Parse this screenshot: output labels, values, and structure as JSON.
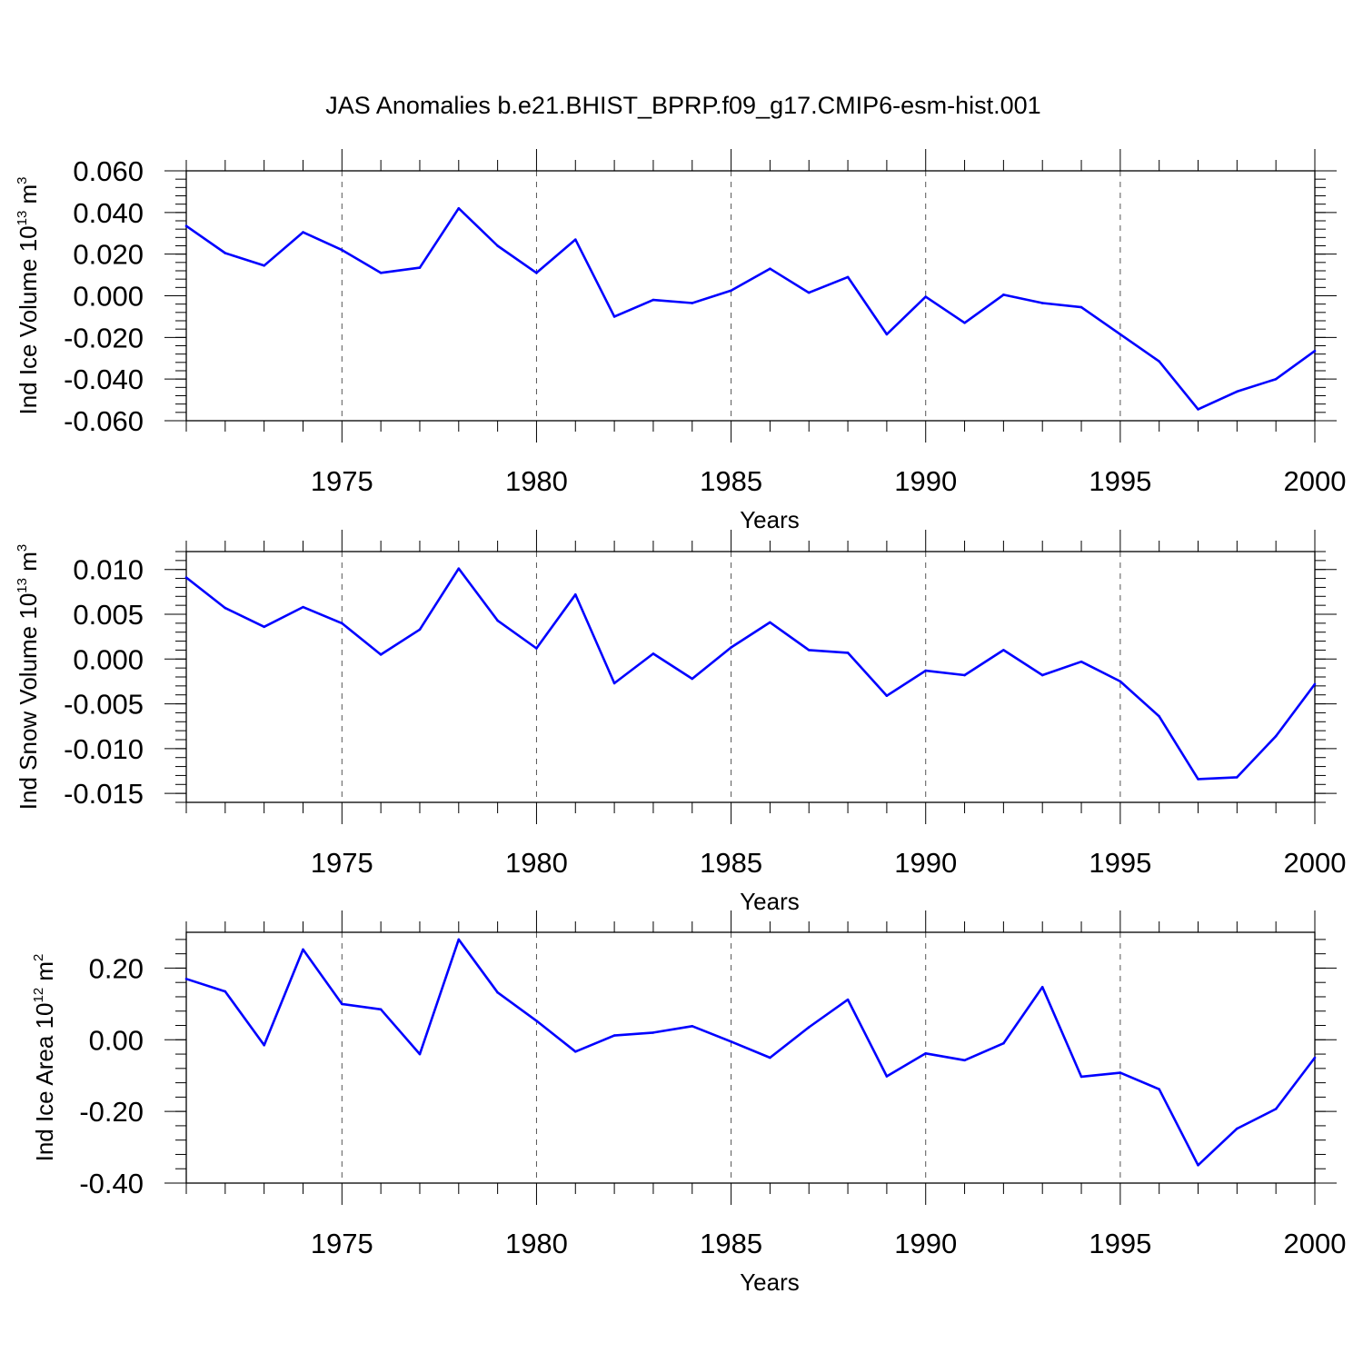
{
  "title": "JAS Anomalies b.e21.BHIST_BPRP.f09_g17.CMIP6-esm-hist.001",
  "colors": {
    "line": "#0000ff",
    "axis": "#000000",
    "grid": "#555555"
  },
  "chart_data": [
    {
      "type": "line",
      "ylabel": {
        "prefix": "Ind Ice Volume 10",
        "exp": "13",
        "unit": " m",
        "unit_exp": "3"
      },
      "xlabel": "Years",
      "xlim": [
        1971,
        2000
      ],
      "xticks": [
        "1975",
        "1980",
        "1985",
        "1990",
        "1995",
        "2000"
      ],
      "ylim": [
        -0.06,
        0.06
      ],
      "yticks": [
        "0.060",
        "0.040",
        "0.020",
        "0.000",
        "-0.020",
        "-0.040",
        "-0.060"
      ],
      "grid": "dashed vertical at major x ticks",
      "x": [
        1971,
        1972,
        1973,
        1974,
        1975,
        1976,
        1977,
        1978,
        1979,
        1980,
        1981,
        1982,
        1983,
        1984,
        1985,
        1986,
        1987,
        1988,
        1989,
        1990,
        1991,
        1992,
        1993,
        1994,
        1995,
        1996,
        1997,
        1998,
        1999,
        2000
      ],
      "values": [
        0.0335,
        0.0205,
        0.0145,
        0.0305,
        0.022,
        0.011,
        0.0135,
        0.042,
        0.024,
        0.011,
        0.027,
        -0.01,
        -0.002,
        -0.0035,
        0.0025,
        0.013,
        0.0015,
        0.009,
        -0.0185,
        -0.0005,
        -0.013,
        0.0005,
        -0.0035,
        -0.0055,
        -0.0185,
        -0.0315,
        -0.0545,
        -0.046,
        -0.04,
        -0.0265
      ]
    },
    {
      "type": "line",
      "ylabel": {
        "prefix": "Ind Snow Volume 10",
        "exp": "13",
        "unit": " m",
        "unit_exp": "3"
      },
      "xlabel": "Years",
      "xlim": [
        1971,
        2000
      ],
      "xticks": [
        "1975",
        "1980",
        "1985",
        "1990",
        "1995",
        "2000"
      ],
      "ylim": [
        -0.016,
        0.012
      ],
      "yticks": [
        "0.010",
        "0.005",
        "0.000",
        "-0.005",
        "-0.010",
        "-0.015"
      ],
      "grid": "dashed vertical at major x ticks",
      "x": [
        1971,
        1972,
        1973,
        1974,
        1975,
        1976,
        1977,
        1978,
        1979,
        1980,
        1981,
        1982,
        1983,
        1984,
        1985,
        1986,
        1987,
        1988,
        1989,
        1990,
        1991,
        1992,
        1993,
        1994,
        1995,
        1996,
        1997,
        1998,
        1999,
        2000
      ],
      "values": [
        0.0091,
        0.0057,
        0.0036,
        0.0058,
        0.004,
        0.0005,
        0.0033,
        0.0101,
        0.0043,
        0.0012,
        0.0072,
        -0.0027,
        0.0006,
        -0.0022,
        0.0013,
        0.0041,
        0.001,
        0.0007,
        -0.0041,
        -0.0013,
        -0.0018,
        0.001,
        -0.0018,
        -0.0003,
        -0.0025,
        -0.0064,
        -0.0134,
        -0.0132,
        -0.0086,
        -0.0028
      ]
    },
    {
      "type": "line",
      "ylabel": {
        "prefix": "Ind Ice Area 10",
        "exp": "12",
        "unit": " m",
        "unit_exp": "2"
      },
      "xlabel": "Years",
      "xlim": [
        1971,
        2000
      ],
      "xticks": [
        "1975",
        "1980",
        "1985",
        "1990",
        "1995",
        "2000"
      ],
      "ylim": [
        -0.4,
        0.3
      ],
      "yticks": [
        "0.20",
        "0.00",
        "-0.20",
        "-0.40"
      ],
      "grid": "dashed vertical at major x ticks",
      "x": [
        1971,
        1972,
        1973,
        1974,
        1975,
        1976,
        1977,
        1978,
        1979,
        1980,
        1981,
        1982,
        1983,
        1984,
        1985,
        1986,
        1987,
        1988,
        1989,
        1990,
        1991,
        1992,
        1993,
        1994,
        1995,
        1996,
        1997,
        1998,
        1999,
        2000
      ],
      "values": [
        0.17,
        0.135,
        -0.015,
        0.252,
        0.1,
        0.085,
        -0.04,
        0.28,
        0.132,
        0.053,
        -0.033,
        0.012,
        0.02,
        0.038,
        -0.005,
        -0.05,
        0.035,
        0.112,
        -0.102,
        -0.038,
        -0.057,
        -0.01,
        0.147,
        -0.103,
        -0.092,
        -0.138,
        -0.35,
        -0.248,
        -0.193,
        -0.05
      ]
    }
  ]
}
